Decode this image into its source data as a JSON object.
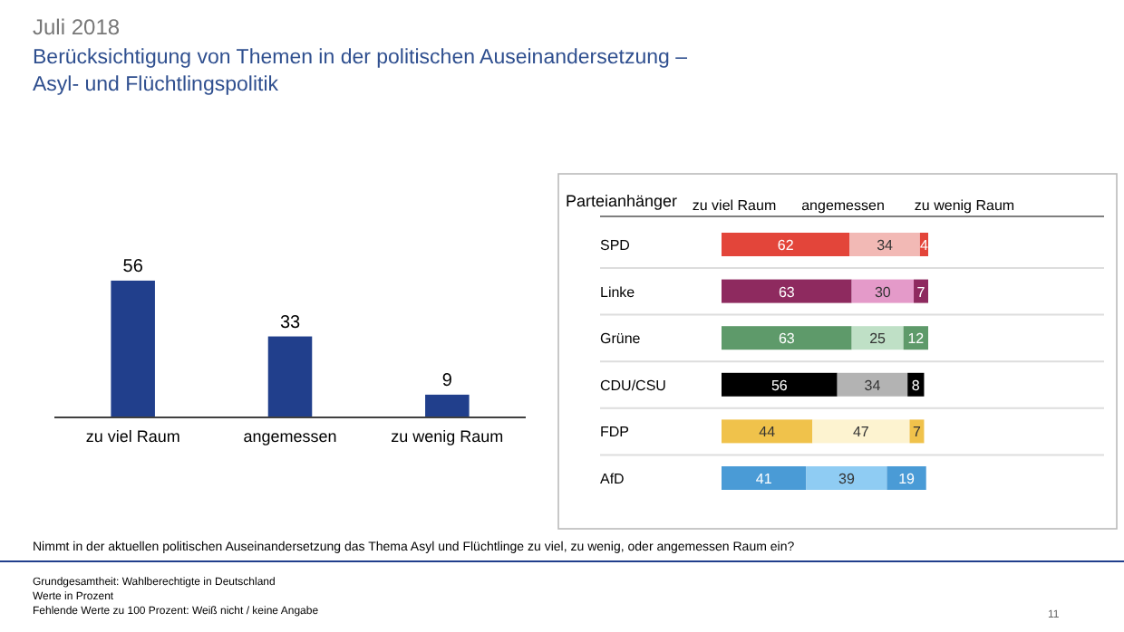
{
  "chart_data": [
    {
      "type": "bar",
      "title": "Juli 2018",
      "subtitle": "Berücksichtigung von Themen in der politischen Auseinandersetzung – Asyl- und Flüchtlingspolitik",
      "categories": [
        "zu viel Raum",
        "angemessen",
        "zu wenig Raum"
      ],
      "values": [
        56,
        33,
        9
      ],
      "color": "#213f8c",
      "data_labels": true,
      "annotations": [
        "Nimmt in der aktuellen politischen Auseinandersetzung das Thema Asyl und Flüchtlinge zu viel, zu wenig, oder angemessen Raum ein?",
        "Grundgesamtheit: Wahlberechtigte in Deutschland",
        "Werte in Prozent",
        "Fehlende Werte zu 100 Prozent: Weiß nicht / keine Angabe",
        "11"
      ]
    },
    {
      "type": "bar",
      "title": "Parteianhänger",
      "orientation": "horizontal",
      "stacked": true,
      "data_labels": true,
      "legend": "top",
      "categories": [
        "SPD",
        "Linke",
        "Grüne",
        "CDU/CSU",
        "FDP",
        "AfD"
      ],
      "series": [
        {
          "name": "zu viel Raum",
          "values": [
            62,
            63,
            63,
            56,
            44,
            41
          ],
          "colors": [
            "#e3453a",
            "#8e2a5f",
            "#5e9a6a",
            "#000000",
            "#f0c24b",
            "#4a9bd6"
          ]
        },
        {
          "name": "angemessen",
          "values": [
            34,
            30,
            25,
            34,
            47,
            39
          ],
          "colors": [
            "#f2b9b5",
            "#e49ac9",
            "#bfe0c6",
            "#b3b3b3",
            "#fdf3d0",
            "#8fccf3"
          ]
        },
        {
          "name": "zu wenig Raum",
          "values": [
            4,
            7,
            12,
            8,
            7,
            19
          ],
          "colors": [
            "#e3453a",
            "#8e2a5f",
            "#5e9a6a",
            "#000000",
            "#f0c24b",
            "#4a9bd6"
          ]
        }
      ]
    }
  ]
}
